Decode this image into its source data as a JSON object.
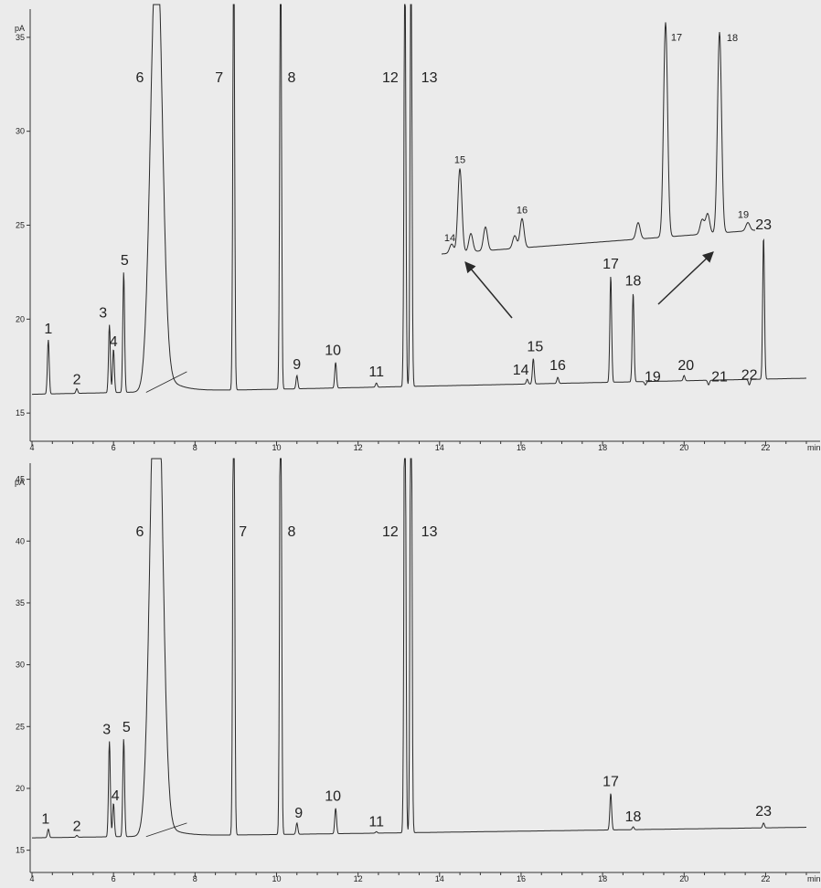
{
  "colors": {
    "background": "#ebebeb",
    "trace": "#2a2a2a",
    "axis": "#333333"
  },
  "chart_data": [
    {
      "type": "line",
      "panel": "top",
      "xlabel": "min",
      "ylabel": "pA",
      "xlim": [
        4,
        23
      ],
      "ylim": [
        13.5,
        36.5
      ],
      "xticks": [
        "4",
        "6",
        "8",
        "10",
        "12",
        "14",
        "16",
        "18",
        "20",
        "22"
      ],
      "yticks": [
        "15",
        "20",
        "25",
        "30",
        "35"
      ],
      "baseline": 16.0,
      "peaks": [
        {
          "label": "1",
          "rt": 4.4,
          "height": 18.9
        },
        {
          "label": "2",
          "rt": 5.1,
          "height": 16.3
        },
        {
          "label": "3",
          "rt": 5.9,
          "height": 19.7
        },
        {
          "label": "4",
          "rt": 6.0,
          "height": 18.4
        },
        {
          "label": "5",
          "rt": 6.25,
          "height": 22.5
        },
        {
          "label": "6",
          "rt": 7.05,
          "height": 40
        },
        {
          "label": "7",
          "rt": 8.95,
          "height": 40
        },
        {
          "label": "8",
          "rt": 10.1,
          "height": 40
        },
        {
          "label": "9",
          "rt": 10.5,
          "height": 17.0
        },
        {
          "label": "10",
          "rt": 11.45,
          "height": 17.7
        },
        {
          "label": "11",
          "rt": 12.45,
          "height": 16.6
        },
        {
          "label": "12",
          "rt": 13.15,
          "height": 40
        },
        {
          "label": "13",
          "rt": 13.3,
          "height": 40
        },
        {
          "label": "14",
          "rt": 16.15,
          "height": 16.8
        },
        {
          "label": "15",
          "rt": 16.3,
          "height": 17.9
        },
        {
          "label": "16",
          "rt": 16.9,
          "height": 16.9
        },
        {
          "label": "17",
          "rt": 18.2,
          "height": 22.3
        },
        {
          "label": "18",
          "rt": 18.75,
          "height": 21.4
        },
        {
          "label": "19",
          "rt": 19.05,
          "height": 16.5
        },
        {
          "label": "20",
          "rt": 20.0,
          "height": 17.0
        },
        {
          "label": "21",
          "rt": 20.6,
          "height": 16.5
        },
        {
          "label": "22",
          "rt": 21.6,
          "height": 16.5
        },
        {
          "label": "23",
          "rt": 21.95,
          "height": 24.4
        }
      ],
      "inset_labels": [
        "14",
        "15",
        "16",
        "17",
        "18",
        "19"
      ]
    },
    {
      "type": "line",
      "panel": "bottom",
      "xlabel": "min",
      "ylabel": "pA",
      "xlim": [
        4,
        23
      ],
      "ylim": [
        13.2,
        46.3
      ],
      "xticks": [
        "4",
        "6",
        "8",
        "10",
        "12",
        "14",
        "16",
        "18",
        "20",
        "22"
      ],
      "yticks": [
        "15",
        "20",
        "25",
        "30",
        "35",
        "40",
        "45"
      ],
      "baseline": 16.0,
      "peaks": [
        {
          "label": "1",
          "rt": 4.4,
          "height": 16.7
        },
        {
          "label": "2",
          "rt": 5.1,
          "height": 16.2
        },
        {
          "label": "3",
          "rt": 5.9,
          "height": 23.8
        },
        {
          "label": "4",
          "rt": 6.0,
          "height": 18.8
        },
        {
          "label": "5",
          "rt": 6.25,
          "height": 24.0
        },
        {
          "label": "6",
          "rt": 7.05,
          "height": 60
        },
        {
          "label": "7",
          "rt": 8.95,
          "height": 60
        },
        {
          "label": "8",
          "rt": 10.1,
          "height": 60
        },
        {
          "label": "9",
          "rt": 10.5,
          "height": 17.2
        },
        {
          "label": "10",
          "rt": 11.45,
          "height": 18.4
        },
        {
          "label": "11",
          "rt": 12.45,
          "height": 16.5
        },
        {
          "label": "12",
          "rt": 13.15,
          "height": 60
        },
        {
          "label": "13",
          "rt": 13.3,
          "height": 60
        },
        {
          "label": "17",
          "rt": 18.2,
          "height": 19.6
        },
        {
          "label": "18",
          "rt": 18.75,
          "height": 16.9
        },
        {
          "label": "23",
          "rt": 21.95,
          "height": 17.2
        }
      ]
    }
  ]
}
